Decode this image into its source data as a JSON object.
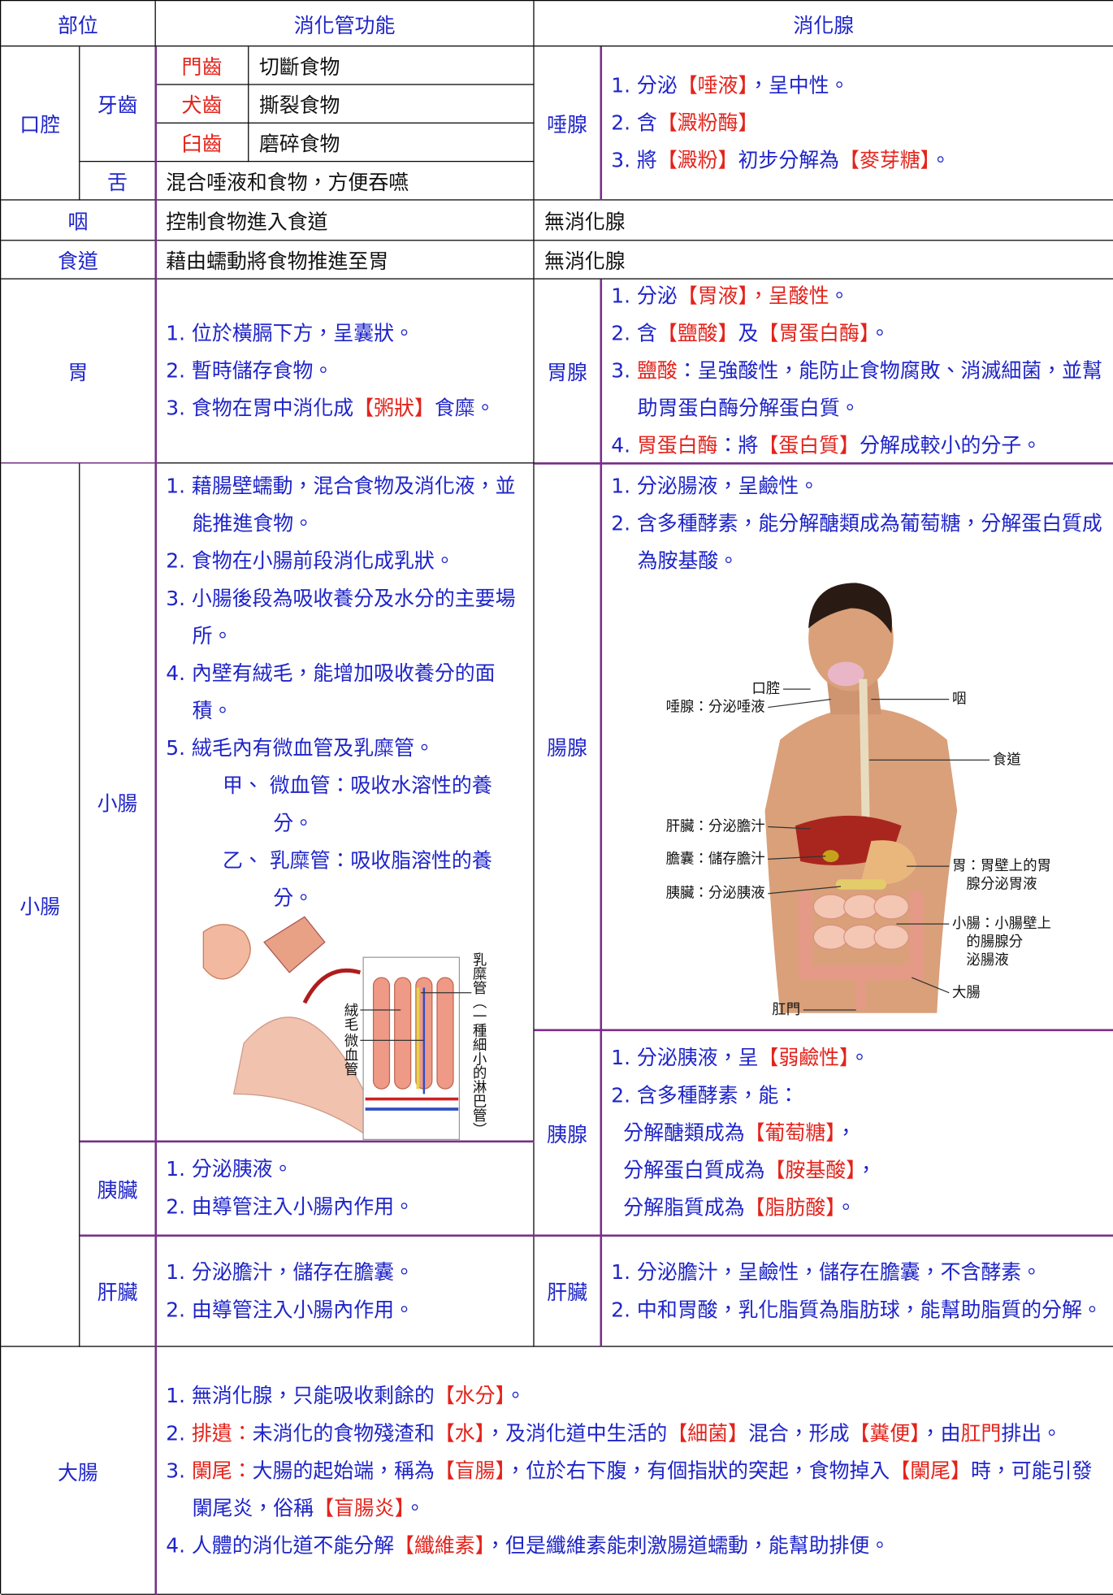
{
  "header": {
    "part": "部位",
    "function": "消化管功能",
    "gland": "消化腺"
  },
  "oral": {
    "part": "口腔",
    "teeth": "牙齒",
    "teeth_rows": [
      {
        "name": "門齒",
        "function": "切斷食物"
      },
      {
        "name": "犬齒",
        "function": "撕裂食物"
      },
      {
        "name": "臼齒",
        "function": "磨碎食物"
      }
    ],
    "tongue": "舌",
    "tongue_function": "混合唾液和食物，方便吞嚥",
    "gland": "唾腺",
    "gland_items": [
      [
        "1. 分泌",
        {
          "text": "【唾液】",
          "color": "#e3231b"
        },
        "，呈中性。"
      ],
      [
        "2. 含",
        {
          "text": "【澱粉酶】",
          "color": "#e3231b"
        }
      ],
      [
        "3. 將",
        {
          "text": "【澱粉】",
          "color": "#e3231b"
        },
        "初步分解為",
        {
          "text": "【麥芽糖】",
          "color": "#e3231b"
        },
        "。"
      ]
    ]
  },
  "pharynx": {
    "part": "咽",
    "function": "控制食物進入食道",
    "gland": "無消化腺"
  },
  "esophagus": {
    "part": "食道",
    "function": "藉由蠕動將食物推進至胃",
    "gland": "無消化腺"
  },
  "stomach": {
    "part": "胃",
    "function_items": [
      [
        "1. 位於橫膈下方，呈囊狀。"
      ],
      [
        "2. 暫時儲存食物。"
      ],
      [
        "3. 食物在胃中消化成",
        {
          "text": "【粥狀】",
          "color": "#e3231b"
        },
        "食糜。"
      ]
    ],
    "gland": "胃腺",
    "gland_items": [
      [
        "1. 分泌",
        {
          "text": "【胃液】，呈酸性",
          "color": "#e3231b"
        },
        "。"
      ],
      [
        "2. 含",
        {
          "text": "【鹽酸】",
          "color": "#e3231b"
        },
        "及",
        {
          "text": "【胃蛋白酶】",
          "color": "#e3231b"
        },
        "。"
      ],
      [
        "3. ",
        {
          "text": "鹽酸",
          "color": "#e3231b"
        },
        "：呈強酸性，能防止食物腐敗、消滅細菌，並幫助胃蛋白酶分解蛋白質。"
      ],
      [
        "4. ",
        {
          "text": "胃蛋白酶",
          "color": "#e3231b"
        },
        "：將",
        {
          "text": "【蛋白質】",
          "color": "#e3231b"
        },
        "分解成較小的分子。"
      ]
    ]
  },
  "small_intestine": {
    "part": "小腸",
    "sub": "小腸",
    "function_items": [
      [
        "1. 藉腸壁蠕動，混合食物及消化液，並能推進食物。"
      ],
      [
        "2. 食物在小腸前段消化成乳狀。"
      ],
      [
        "3. 小腸後段為吸收養分及水分的主要場所。"
      ],
      [
        "4. 內壁有絨毛，能增加吸收養分的面積。"
      ],
      [
        "5. 絨毛內有微血管及乳糜管。"
      ]
    ],
    "function_sub_items": [
      [
        "甲、 微血管：吸收水溶性的養分。"
      ],
      [
        "乙、 乳糜管：吸收脂溶性的養分。"
      ]
    ],
    "gland": "腸腺",
    "gland_items": [
      [
        "1. 分泌腸液，呈鹼性。"
      ],
      [
        "2. 含多種酵素，能分解醣類成為葡萄糖，分解蛋白質成為胺基酸。"
      ]
    ],
    "pancreas": {
      "sub": "胰臟",
      "function_items": [
        [
          "1. 分泌胰液。"
        ],
        [
          "2. 由導管注入小腸內作用。"
        ]
      ],
      "gland": "胰腺",
      "gland_items": [
        [
          "1. 分泌胰液，呈",
          {
            "text": "【弱鹼性】",
            "color": "#e3231b"
          },
          "。"
        ],
        [
          "2. 含多種酵素，能："
        ]
      ],
      "gland_sub_items": [
        [
          "分解醣類成為",
          {
            "text": "【葡萄糖】",
            "color": "#e3231b"
          },
          "，"
        ],
        [
          "分解蛋白質成為",
          {
            "text": "【胺基酸】",
            "color": "#e3231b"
          },
          "，"
        ],
        [
          "分解脂質成為",
          {
            "text": "【脂肪酸】",
            "color": "#e3231b"
          },
          "。"
        ]
      ]
    },
    "liver": {
      "sub": "肝臟",
      "function_items": [
        [
          "1. 分泌膽汁，儲存在膽囊。"
        ],
        [
          "2. 由導管注入小腸內作用。"
        ]
      ],
      "gland": "肝臟",
      "gland_items": [
        [
          "1. 分泌膽汁，呈鹼性，儲存在膽囊，不含酵素。"
        ],
        [
          "2. 中和胃酸，乳化脂質為脂肪球，能幫助脂質的分解。"
        ]
      ]
    }
  },
  "large_intestine": {
    "part": "大腸",
    "function_items": [
      [
        "1. 無消化腺，只能吸收剩餘的",
        {
          "text": "【水分】",
          "color": "#e3231b"
        },
        "。"
      ],
      [
        "2. ",
        {
          "text": "排遺：",
          "color": "#e3231b"
        },
        "未消化的食物殘渣和",
        {
          "text": "【水】",
          "color": "#e3231b"
        },
        "，及消化道中生活的",
        {
          "text": "【細菌】",
          "color": "#e3231b"
        },
        "混合，形成",
        {
          "text": "【糞便】",
          "color": "#e3231b"
        },
        "，由",
        {
          "text": "肛門",
          "color": "#e3231b"
        },
        "排出。"
      ],
      [
        "3. ",
        {
          "text": "闌尾：",
          "color": "#e3231b"
        },
        "大腸的起始端，稱為",
        {
          "text": "【盲腸】",
          "color": "#e3231b"
        },
        "，位於右下腹，有個指狀的突起，食物掉入",
        {
          "text": "【闌尾】",
          "color": "#e3231b"
        },
        "時，可能引發闌尾炎，俗稱",
        {
          "text": "【盲腸炎】",
          "color": "#e3231b"
        },
        "。"
      ],
      [
        "4. 人體的消化道不能分解",
        {
          "text": "【纖維素】",
          "color": "#e3231b"
        },
        "，但是纖維素能刺激腸道蠕動，能幫助排便。"
      ]
    ]
  },
  "figures": {
    "villi": {
      "labels": [
        "絨毛",
        "微血管",
        "乳糜管（一種細小的淋巴管）"
      ]
    },
    "body": {
      "labels": [
        [
          "口腔"
        ],
        [
          "唾腺：分泌唾液"
        ],
        [
          "咽"
        ],
        [
          "食道"
        ],
        [
          "肝臟：分泌膽汁"
        ],
        [
          "膽囊：儲存膽汁"
        ],
        [
          "胰臟：分泌胰液"
        ],
        [
          "胃：胃壁上的胃",
          "腺分泌胃液"
        ],
        [
          "小腸：小腸壁上",
          "的腸腺分",
          "泌腸液"
        ],
        [
          "大腸"
        ],
        [
          "肛門"
        ]
      ]
    }
  }
}
